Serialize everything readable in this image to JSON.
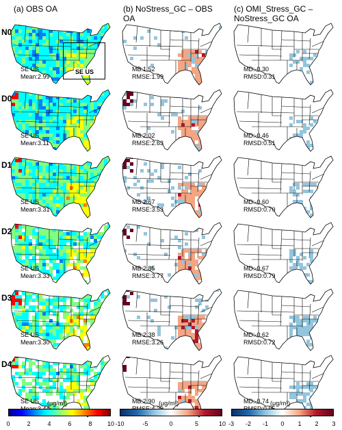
{
  "columns": [
    {
      "title": "(a) OBS OA"
    },
    {
      "title": "(b) NoStress_GC – OBS\nOA"
    },
    {
      "title": "(c) OMI_Stress_GC –\nNoStress_GC OA"
    }
  ],
  "rows": [
    {
      "label": "N0",
      "obs": {
        "region": "SE US",
        "mean": "Mean:2.99"
      },
      "diff": {
        "l1": "MB:1.52",
        "l2": "RMSE:1.99"
      },
      "stress": {
        "l1": "MD:-0.30",
        "l2": "RMSD:0.31"
      }
    },
    {
      "label": "D0",
      "obs": {
        "region": "SE US",
        "mean": "Mean:3.11"
      },
      "diff": {
        "l1": "MB:2.02",
        "l2": "RMSE:2.63"
      },
      "stress": {
        "l1": "MD:-0.46",
        "l2": "RMSD:0.51"
      }
    },
    {
      "label": "D1",
      "obs": {
        "region": "SE US",
        "mean": "Mean:3.31"
      },
      "diff": {
        "l1": "MB:2.67",
        "l2": "RMSE:3.53"
      },
      "stress": {
        "l1": "MD:-0.60",
        "l2": "RMSD:0.70"
      }
    },
    {
      "label": "D2",
      "obs": {
        "region": "SE US",
        "mean": "Mean:3.33"
      },
      "diff": {
        "l1": "MB:2.85",
        "l2": "RMSE:3.77"
      },
      "stress": {
        "l1": "MD:-0.67",
        "l2": "RMSD:0.79"
      }
    },
    {
      "label": "D3",
      "obs": {
        "region": "SE US",
        "mean": "Mean:3.30"
      },
      "diff": {
        "l1": "MB:2.38",
        "l2": "RMSE:3.26"
      },
      "stress": {
        "l1": "MD:-0.62",
        "l2": "RMSD:0.72"
      }
    },
    {
      "label": "D4",
      "obs": {
        "region": "SE US",
        "mean": "Mean:3.44"
      },
      "diff": {
        "l1": "MB:2.90",
        "l2": "RMSE:4.29"
      },
      "stress": {
        "l1": "MD:-0.74",
        "l2": "RMSD:0.95"
      }
    }
  ],
  "box_label": "SE US",
  "colorbars": [
    {
      "unit": "(μg/m³)",
      "ticks": [
        "0",
        "2",
        "4",
        "6",
        "8",
        "10"
      ],
      "palette": "jet"
    },
    {
      "unit": "(μg/m³)",
      "ticks": [
        "-10",
        "-5",
        "0",
        "5",
        "10"
      ],
      "palette": "bwr"
    },
    {
      "unit": "(μg/m³)",
      "ticks": [
        "-3",
        "-2",
        "-1",
        "0",
        "1",
        "2",
        "3"
      ],
      "palette": "bwr"
    }
  ],
  "colors": {
    "jet": [
      "#00008f",
      "#0000ff",
      "#0080ff",
      "#00ffff",
      "#80ff80",
      "#ffff00",
      "#ff8000",
      "#ff0000",
      "#800000"
    ],
    "bwr": [
      "#08306b",
      "#2166ac",
      "#92c5de",
      "#ffffff",
      "#f4a582",
      "#b2182b",
      "#67001f"
    ]
  }
}
